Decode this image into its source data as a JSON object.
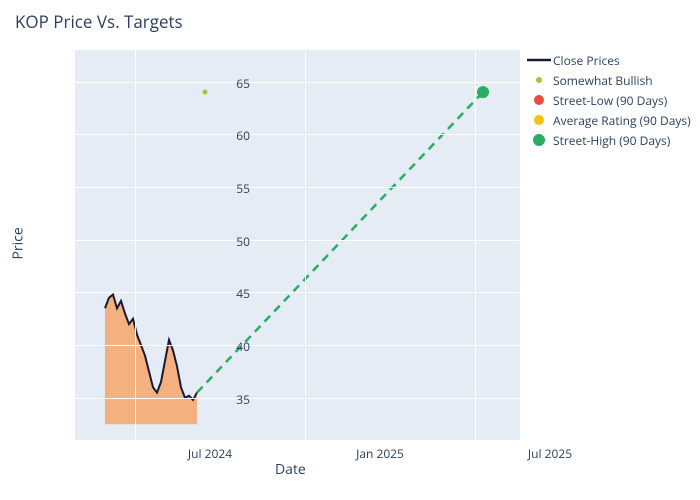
{
  "chart": {
    "type": "line+scatter",
    "title": "KOP Price Vs. Targets",
    "ylabel": "Price",
    "xlabel": "Date",
    "title_fontsize": 17,
    "label_fontsize": 14,
    "tick_fontsize": 12,
    "background_color": "#ffffff",
    "plot_background": "#e5ecf6",
    "grid_color": "#ffffff",
    "text_color": "#2a3f5f",
    "ylim": [
      31,
      68
    ],
    "yticks": [
      35,
      40,
      45,
      50,
      55,
      60,
      65
    ],
    "xticks": [
      {
        "label": "Jul 2024",
        "x": 60
      },
      {
        "label": "Jan 2025",
        "x": 230
      },
      {
        "label": "Jul 2025",
        "x": 400
      }
    ],
    "close_prices": {
      "color": "#161a33",
      "fill_color": "#f7a668",
      "fill_opacity": 0.85,
      "linewidth": 2,
      "points": [
        {
          "x": 30,
          "y": 43.5
        },
        {
          "x": 34,
          "y": 44.5
        },
        {
          "x": 38,
          "y": 44.8
        },
        {
          "x": 42,
          "y": 43.5
        },
        {
          "x": 46,
          "y": 44.2
        },
        {
          "x": 50,
          "y": 43.0
        },
        {
          "x": 54,
          "y": 42.0
        },
        {
          "x": 58,
          "y": 42.5
        },
        {
          "x": 62,
          "y": 41.0
        },
        {
          "x": 66,
          "y": 40.0
        },
        {
          "x": 70,
          "y": 39.0
        },
        {
          "x": 74,
          "y": 37.5
        },
        {
          "x": 78,
          "y": 36.0
        },
        {
          "x": 82,
          "y": 35.5
        },
        {
          "x": 86,
          "y": 36.5
        },
        {
          "x": 90,
          "y": 38.5
        },
        {
          "x": 94,
          "y": 40.5
        },
        {
          "x": 98,
          "y": 39.5
        },
        {
          "x": 102,
          "y": 38.0
        },
        {
          "x": 106,
          "y": 36.0
        },
        {
          "x": 110,
          "y": 35.0
        },
        {
          "x": 114,
          "y": 35.2
        },
        {
          "x": 118,
          "y": 34.8
        },
        {
          "x": 122,
          "y": 35.5
        }
      ],
      "fill_base": 32.5
    },
    "somewhat_bullish": {
      "color": "#9acd32",
      "marker_size": 5,
      "points": [
        {
          "x": 130,
          "y": 64
        }
      ]
    },
    "street_low": {
      "color": "#e74c3c",
      "marker_size": 12,
      "points": []
    },
    "average_rating": {
      "color": "#f1c40f",
      "marker_size": 12,
      "points": []
    },
    "street_high": {
      "color": "#27ae60",
      "marker_size": 12,
      "points": [
        {
          "x": 408,
          "y": 64
        }
      ]
    },
    "dashed_line": {
      "color": "#27ae60",
      "linewidth": 2.5,
      "dash": "8 6",
      "from": {
        "x": 122,
        "y": 35.5
      },
      "to": {
        "x": 408,
        "y": 64
      }
    },
    "legend_items": [
      {
        "type": "line",
        "color": "#161a33",
        "label": "Close Prices"
      },
      {
        "type": "dot",
        "color": "#9acd32",
        "size": 6,
        "label": "Somewhat Bullish"
      },
      {
        "type": "dot",
        "color": "#e74c3c",
        "size": 10,
        "label": "Street-Low (90 Days)"
      },
      {
        "type": "dot",
        "color": "#f1c40f",
        "size": 10,
        "label": "Average Rating (90 Days)"
      },
      {
        "type": "dot",
        "color": "#27ae60",
        "size": 12,
        "label": "Street-High (90 Days)"
      }
    ]
  }
}
